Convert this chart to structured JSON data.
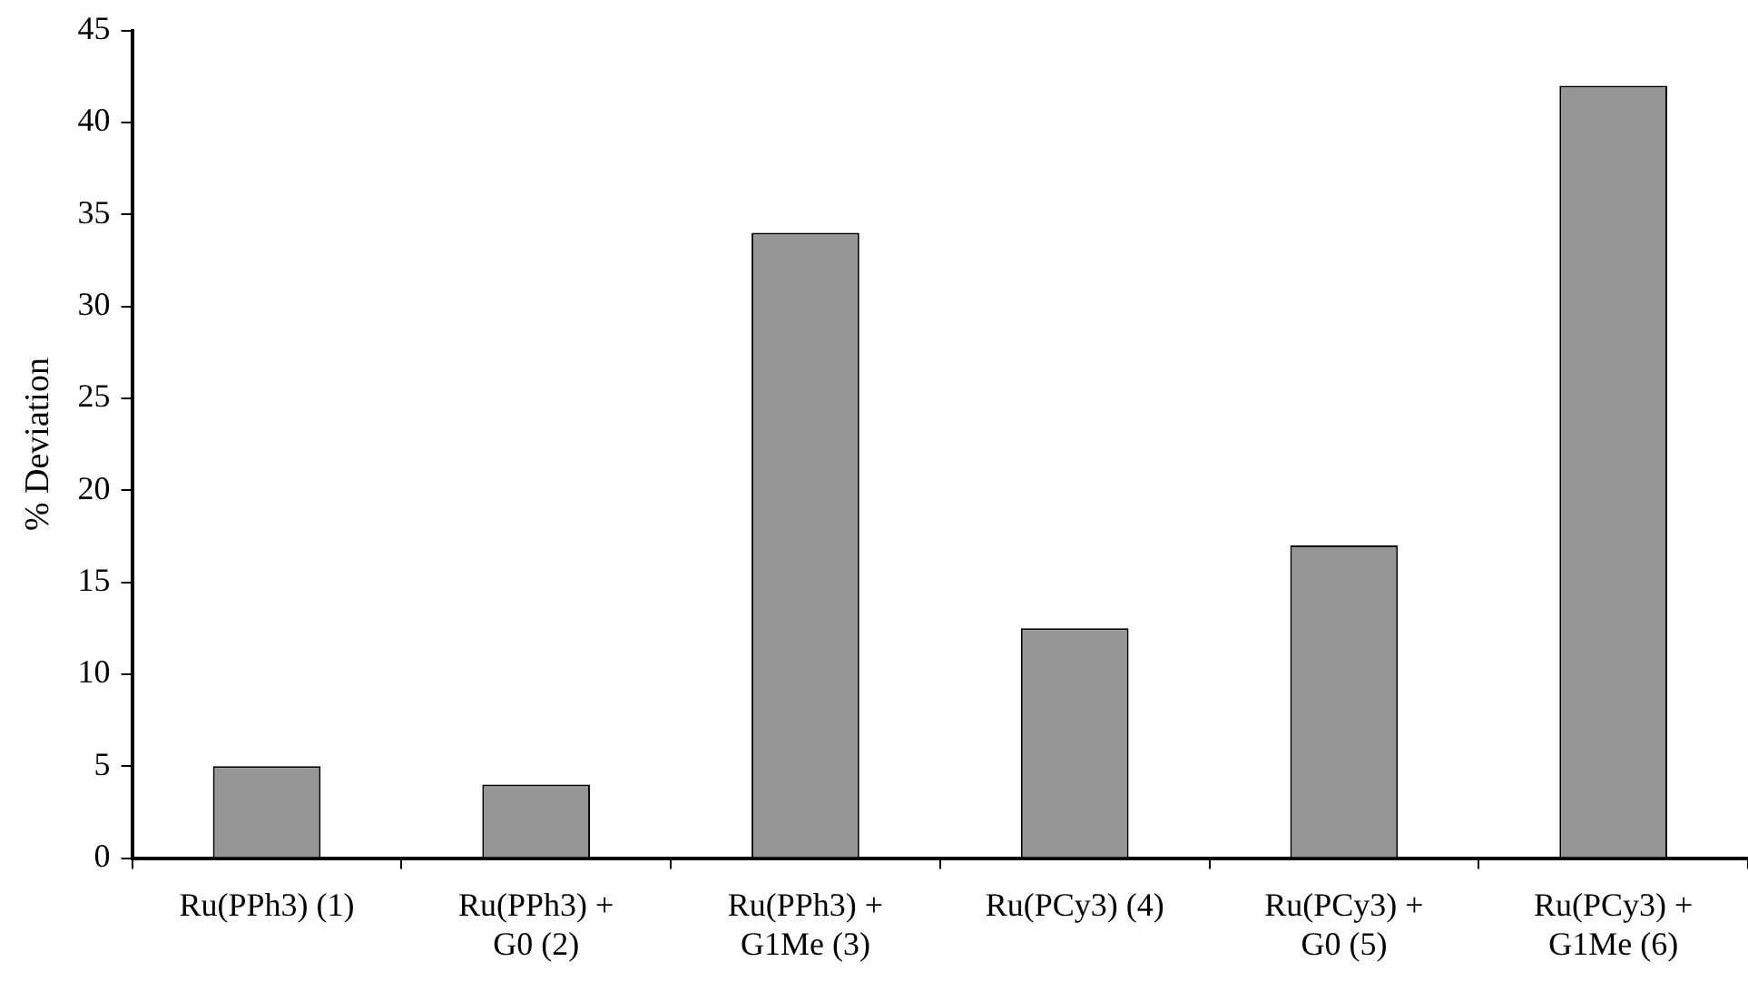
{
  "chart_data": {
    "type": "bar",
    "ylabel": "% Deviation",
    "categories": [
      "Ru(PPh3) (1)",
      "Ru(PPh3) + G0 (2)",
      "Ru(PPh3) + G1Me (3)",
      "Ru(PCy3) (4)",
      "Ru(PCy3) + G0 (5)",
      "Ru(PCy3) + G1Me (6)"
    ],
    "values": [
      5,
      4,
      34,
      12.5,
      17,
      42
    ],
    "color": "#969696",
    "ylim": [
      0,
      45
    ],
    "yticks": [
      0,
      5,
      10,
      15,
      20,
      25,
      30,
      35,
      40,
      45
    ],
    "grid": false,
    "legend": false
  }
}
